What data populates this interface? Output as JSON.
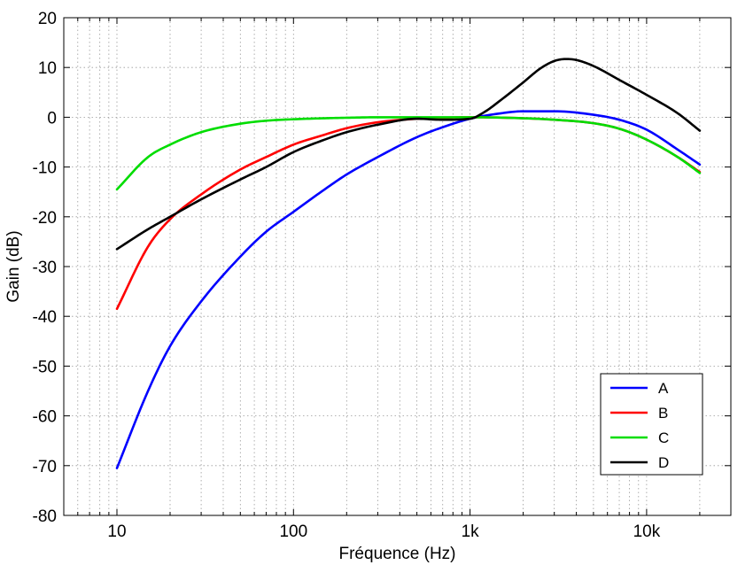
{
  "chart_data": {
    "type": "line",
    "title": "",
    "xlabel": "Fréquence (Hz)",
    "ylabel": "Gain (dB)",
    "xscale": "log",
    "xlim": [
      5,
      30000
    ],
    "ylim": [
      -80,
      20
    ],
    "xticks": [
      10,
      100,
      1000,
      10000
    ],
    "xtick_labels": [
      "10",
      "100",
      "1k",
      "10k"
    ],
    "yticks": [
      20,
      10,
      0,
      -10,
      -20,
      -30,
      -40,
      -50,
      -60,
      -70,
      -80
    ],
    "ytick_labels": [
      "20",
      "10",
      "0",
      "-10",
      "-20",
      "-30",
      "-40",
      "-50",
      "-60",
      "-70",
      "-80"
    ],
    "grid": true,
    "legend_position": "bottom-right",
    "series": [
      {
        "name": "A",
        "color": "#0000ff",
        "x": [
          10,
          15,
          20,
          30,
          50,
          70,
          100,
          150,
          200,
          300,
          500,
          700,
          1000,
          1500,
          2000,
          3000,
          5000,
          7000,
          10000,
          15000,
          20000
        ],
        "y": [
          -70.5,
          -55,
          -46,
          -37,
          -28,
          -23,
          -19,
          -14.5,
          -11.5,
          -8,
          -4,
          -2,
          -0.3,
          0.8,
          1.2,
          1.2,
          0.5,
          -0.5,
          -2.5,
          -6.5,
          -9.5
        ]
      },
      {
        "name": "B",
        "color": "#ff0000",
        "x": [
          10,
          15,
          20,
          30,
          50,
          70,
          100,
          150,
          200,
          300,
          500,
          700,
          1000,
          2000,
          3000,
          5000,
          7000,
          10000,
          15000,
          20000
        ],
        "y": [
          -38.5,
          -26,
          -20.5,
          -15.5,
          -10.5,
          -8,
          -5.5,
          -3.5,
          -2.2,
          -1,
          -0.3,
          -0.1,
          0,
          -0.2,
          -0.5,
          -1.2,
          -2.3,
          -4.5,
          -8,
          -11
        ]
      },
      {
        "name": "C",
        "color": "#00dd00",
        "x": [
          10,
          15,
          20,
          30,
          50,
          70,
          100,
          150,
          200,
          300,
          500,
          1000,
          2000,
          3000,
          5000,
          7000,
          10000,
          15000,
          20000
        ],
        "y": [
          -14.5,
          -8,
          -5.5,
          -3,
          -1.3,
          -0.7,
          -0.4,
          -0.2,
          -0.1,
          0,
          0,
          0,
          -0.2,
          -0.5,
          -1.2,
          -2.3,
          -4.5,
          -8,
          -11.2
        ]
      },
      {
        "name": "D",
        "color": "#000000",
        "x": [
          10,
          15,
          20,
          30,
          50,
          70,
          100,
          150,
          200,
          300,
          500,
          700,
          1000,
          1200,
          1500,
          2000,
          2500,
          3000,
          3500,
          4000,
          5000,
          7000,
          10000,
          15000,
          20000
        ],
        "y": [
          -26.5,
          -22.5,
          -20,
          -16.5,
          -12.5,
          -10,
          -7,
          -4.5,
          -3,
          -1.5,
          -0.3,
          -0.5,
          -0.3,
          1,
          3.5,
          7,
          9.8,
          11.3,
          11.7,
          11.5,
          10.3,
          7.5,
          4.5,
          0.8,
          -2.7
        ]
      }
    ]
  }
}
